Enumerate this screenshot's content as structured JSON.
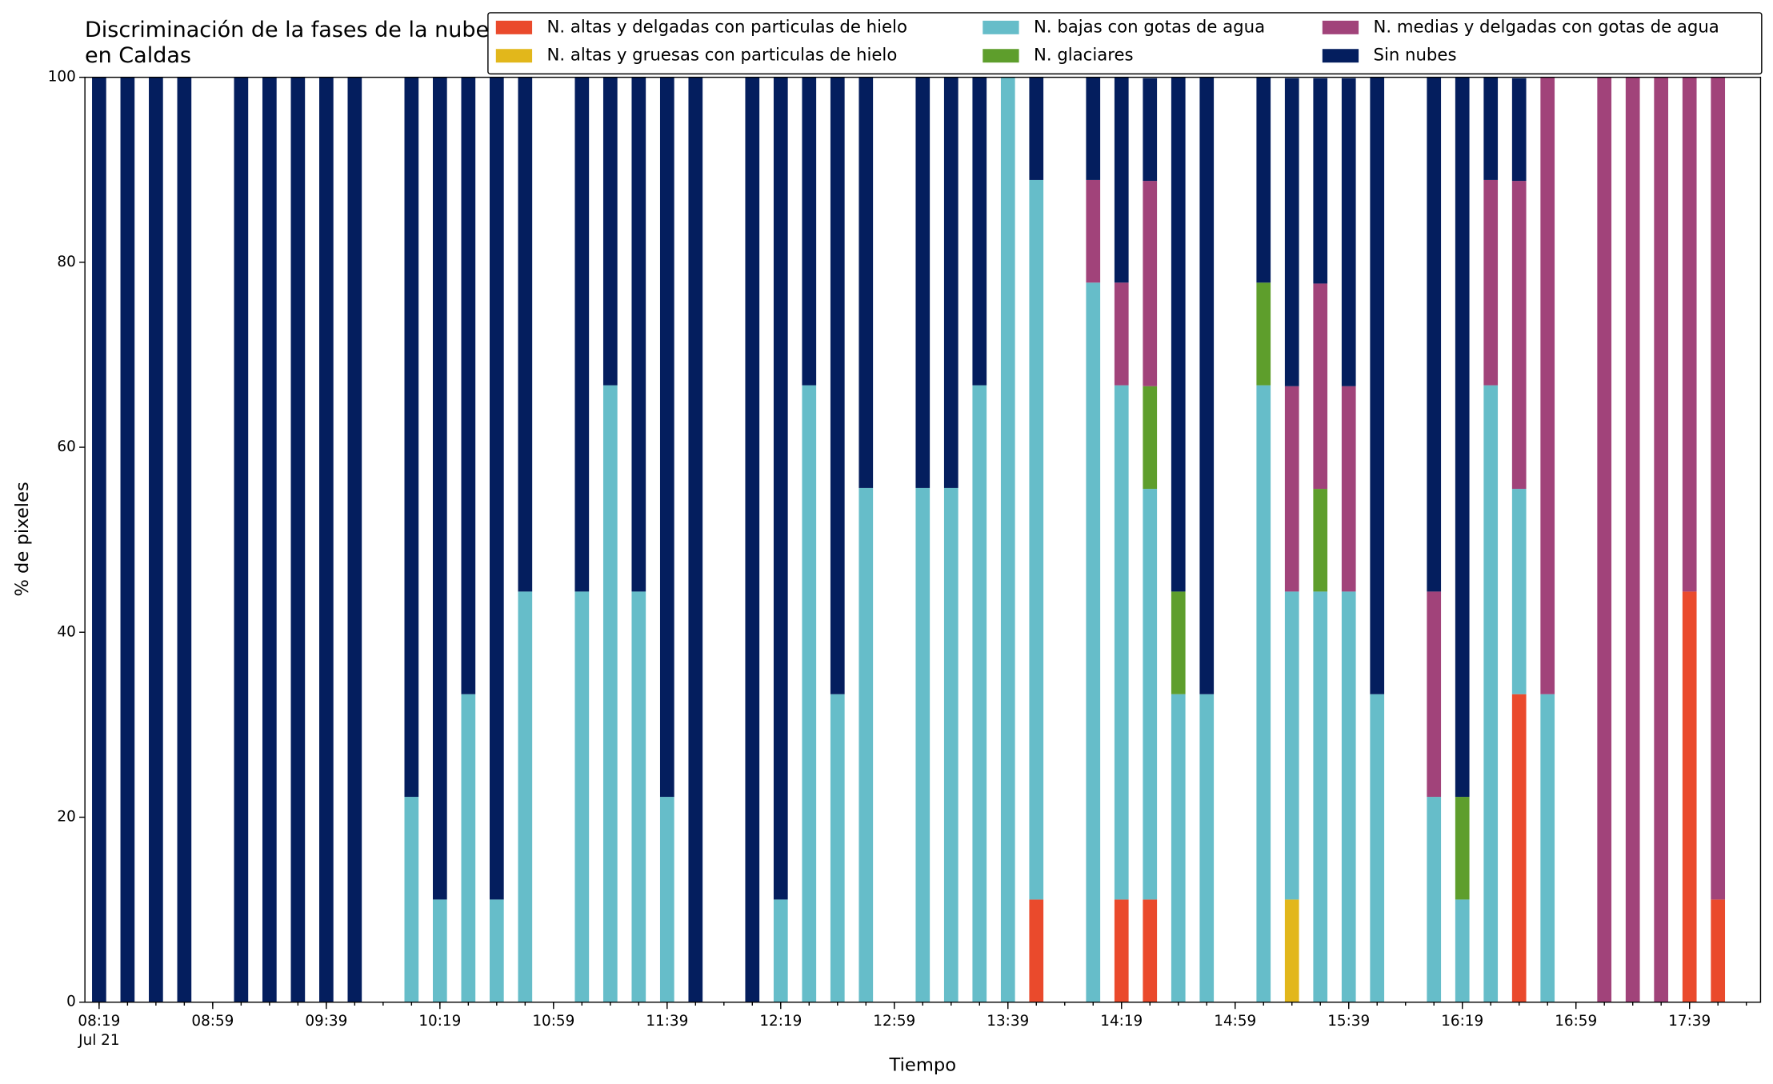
{
  "chart_data": {
    "type": "stacked_bar",
    "title": "Discriminación de la fases de la nube en Caldas",
    "xlabel": "Tiempo",
    "ylabel": "% de pixeles",
    "x": [
      "08:19",
      "08:29",
      "08:39",
      "08:49",
      "09:09",
      "09:19",
      "09:29",
      "09:39",
      "09:49",
      "10:09",
      "10:19",
      "10:29",
      "10:39",
      "10:49",
      "11:09",
      "11:19",
      "11:29",
      "11:39",
      "11:49",
      "12:09",
      "12:19",
      "12:29",
      "12:39",
      "12:49",
      "13:09",
      "13:19",
      "13:29",
      "13:39",
      "13:49",
      "14:09",
      "14:19",
      "14:29",
      "14:39",
      "14:49",
      "15:09",
      "15:19",
      "15:29",
      "15:39",
      "15:49",
      "16:09",
      "16:19",
      "16:29",
      "16:39",
      "16:49",
      "17:09",
      "17:19",
      "17:29",
      "17:39",
      "17:49"
    ],
    "xlim": [
      "08:14",
      "18:04"
    ],
    "xticks": [
      "08:19",
      "08:59",
      "09:39",
      "10:19",
      "10:59",
      "11:39",
      "12:19",
      "12:59",
      "13:39",
      "14:19",
      "14:59",
      "15:39",
      "16:19",
      "16:59",
      "17:39"
    ],
    "xtick_sublabel": "Jul 21",
    "ylim": [
      0,
      100
    ],
    "yticks": [
      0,
      20,
      40,
      60,
      80,
      100
    ],
    "legend": "upper right",
    "series": [
      {
        "name": "N. altas y delgadas con particulas de hielo",
        "color": "#ea4a2c",
        "values": [
          0,
          0,
          0,
          0,
          0,
          0,
          0,
          0,
          0,
          0,
          0,
          0,
          0,
          0,
          0,
          0,
          0,
          0,
          0,
          0,
          0,
          0,
          0,
          0,
          0,
          0,
          0,
          0,
          11.1,
          0,
          11.1,
          11.1,
          0,
          0,
          0,
          0,
          0,
          0,
          0,
          0,
          0,
          0,
          33.3,
          0,
          0,
          0,
          0,
          44.4,
          11.1
        ]
      },
      {
        "name": "N. altas y gruesas con particulas de hielo",
        "color": "#e2b71b",
        "values": [
          0,
          0,
          0,
          0,
          0,
          0,
          0,
          0,
          0,
          0,
          0,
          0,
          0,
          0,
          0,
          0,
          0,
          0,
          0,
          0,
          0,
          0,
          0,
          0,
          0,
          0,
          0,
          0,
          0,
          0,
          0,
          0,
          0,
          0,
          0,
          11.1,
          0,
          0,
          0,
          0,
          0,
          0,
          0,
          0,
          0,
          0,
          0,
          0,
          0
        ]
      },
      {
        "name": "N. bajas con gotas de agua",
        "color": "#66bdc9",
        "values": [
          0,
          0,
          0,
          0,
          0,
          0,
          0,
          0,
          0,
          22.2,
          11.1,
          33.3,
          11.1,
          44.4,
          44.4,
          66.7,
          44.4,
          22.2,
          0,
          0,
          11.1,
          66.7,
          33.3,
          55.6,
          55.6,
          55.6,
          66.7,
          100,
          77.8,
          77.8,
          55.6,
          44.4,
          33.3,
          33.3,
          66.7,
          33.3,
          44.4,
          44.4,
          33.3,
          22.2,
          11.1,
          66.7,
          22.2,
          33.3,
          0,
          0,
          0,
          0,
          0
        ]
      },
      {
        "name": "N. glaciares",
        "color": "#5e9e2c",
        "values": [
          0,
          0,
          0,
          0,
          0,
          0,
          0,
          0,
          0,
          0,
          0,
          0,
          0,
          0,
          0,
          0,
          0,
          0,
          0,
          0,
          0,
          0,
          0,
          0,
          0,
          0,
          0,
          0,
          0,
          0,
          0,
          11.1,
          11.1,
          0,
          11.1,
          0,
          11.1,
          0,
          0,
          0,
          11.1,
          0,
          0,
          0,
          0,
          0,
          0,
          0,
          0
        ]
      },
      {
        "name": "N. medias y delgadas con gotas de agua",
        "color": "#a1437a",
        "values": [
          0,
          0,
          0,
          0,
          0,
          0,
          0,
          0,
          0,
          0,
          0,
          0,
          0,
          0,
          0,
          0,
          0,
          0,
          0,
          0,
          0,
          0,
          0,
          0,
          0,
          0,
          0,
          0,
          0,
          11.1,
          11.1,
          22.2,
          0,
          0,
          0,
          22.2,
          22.2,
          22.2,
          0,
          22.2,
          0,
          22.2,
          33.3,
          66.7,
          100,
          100,
          100,
          55.6,
          88.9
        ]
      },
      {
        "name": "Sin nubes",
        "color": "#041e5e",
        "values": [
          100,
          100,
          100,
          100,
          100,
          100,
          100,
          100,
          100,
          77.8,
          88.9,
          66.7,
          88.9,
          55.6,
          55.6,
          33.3,
          55.6,
          77.8,
          100,
          100,
          88.9,
          33.3,
          66.7,
          44.4,
          44.4,
          44.4,
          33.3,
          0,
          11.1,
          11.1,
          22.2,
          11.1,
          55.6,
          66.7,
          22.2,
          33.3,
          22.2,
          33.3,
          66.7,
          55.6,
          77.8,
          11.1,
          11.1,
          0,
          0,
          0,
          0,
          0,
          0
        ]
      }
    ]
  }
}
